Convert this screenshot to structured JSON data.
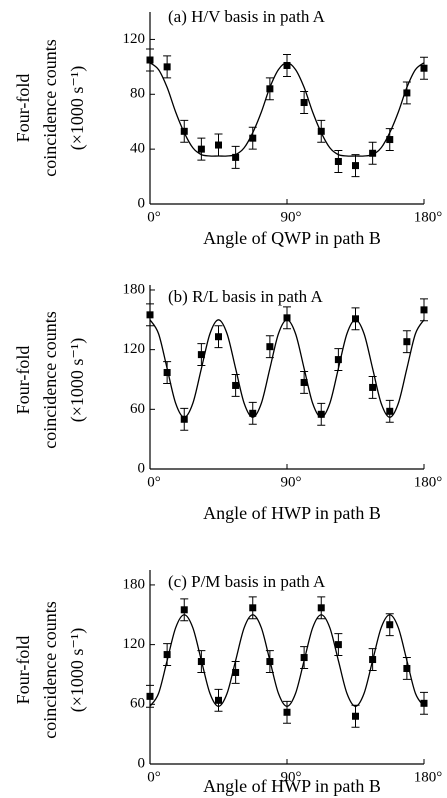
{
  "chart_data": [
    {
      "type": "scatter",
      "title": "(a) H/V basis in path A",
      "xlabel": "Angle of QWP in path B",
      "ylabel": [
        "Four-fold",
        "coincidence counts",
        "(×1000 s⁻¹)"
      ],
      "xlim": [
        0,
        180
      ],
      "xticks": [
        {
          "value": 0,
          "label": "0°"
        },
        {
          "value": 90,
          "label": "90°"
        },
        {
          "value": 180,
          "label": "180°"
        }
      ],
      "ylim": [
        0,
        140
      ],
      "yticks": [
        0,
        40,
        80,
        120
      ],
      "color": "#000000",
      "points": {
        "x": [
          0,
          11.25,
          22.5,
          33.75,
          45,
          56.25,
          67.5,
          78.75,
          90,
          101.25,
          112.5,
          123.75,
          135,
          146.25,
          157.5,
          168.75,
          180
        ],
        "values": [
          105,
          100,
          53,
          40,
          43,
          34,
          48,
          84,
          101,
          74,
          53,
          31,
          28,
          37,
          47,
          81,
          99
        ],
        "errors": [
          8,
          8,
          8,
          8,
          8,
          8,
          8,
          8,
          8,
          8,
          8,
          8,
          8,
          8,
          8,
          8,
          8
        ]
      },
      "fit": {
        "x": [
          0,
          5.625,
          11.25,
          16.875,
          22.5,
          28.125,
          33.75,
          39.375,
          45,
          50.625,
          56.25,
          61.875,
          67.5,
          73.125,
          78.75,
          84.375,
          90,
          95.625,
          101.25,
          106.875,
          112.5,
          118.125,
          123.75,
          129.375,
          135,
          140.625,
          146.25,
          151.875,
          157.5,
          163.125,
          168.75,
          174.375,
          180
        ],
        "values": [
          103,
          98,
          85,
          67,
          52,
          41,
          36,
          35,
          35,
          35,
          36,
          41,
          52,
          67,
          85,
          98,
          103,
          98,
          85,
          67,
          52,
          41,
          36,
          35,
          35,
          35,
          36,
          41,
          52,
          67,
          85,
          98,
          103
        ]
      }
    },
    {
      "type": "scatter",
      "title": "(b) R/L basis in path A",
      "xlabel": "Angle of HWP in path B",
      "ylabel": [
        "Four-fold",
        "coincidence counts",
        "(×1000 s⁻¹)"
      ],
      "xlim": [
        0,
        180
      ],
      "xticks": [
        {
          "value": 0,
          "label": "0°"
        },
        {
          "value": 90,
          "label": "90°"
        },
        {
          "value": 180,
          "label": "180°"
        }
      ],
      "ylim": [
        0,
        185
      ],
      "yticks": [
        0,
        60,
        120,
        180
      ],
      "color": "#000000",
      "points": {
        "x": [
          0,
          11.25,
          22.5,
          33.75,
          45,
          56.25,
          67.5,
          78.75,
          90,
          101.25,
          112.5,
          123.75,
          135,
          146.25,
          157.5,
          168.75,
          180
        ],
        "values": [
          155,
          97,
          50,
          115,
          133,
          84,
          56,
          123,
          152,
          87,
          55,
          110,
          151,
          82,
          58,
          128,
          160
        ],
        "errors": [
          11,
          11,
          11,
          11,
          11,
          11,
          11,
          11,
          11,
          11,
          11,
          11,
          11,
          11,
          11,
          11,
          11
        ]
      },
      "fit": {
        "x": [
          0,
          5.625,
          11.25,
          16.875,
          22.5,
          28.125,
          33.75,
          39.375,
          45,
          50.625,
          56.25,
          61.875,
          67.5,
          73.125,
          78.75,
          84.375,
          90,
          95.625,
          101.25,
          106.875,
          112.5,
          118.125,
          123.75,
          129.375,
          135,
          140.625,
          146.25,
          151.875,
          157.5,
          163.125,
          168.75,
          174.375,
          180
        ],
        "values": [
          150,
          136,
          101,
          66,
          52,
          66,
          101,
          136,
          150,
          136,
          101,
          66,
          52,
          66,
          101,
          136,
          150,
          136,
          101,
          66,
          52,
          66,
          101,
          136,
          150,
          136,
          101,
          66,
          52,
          66,
          101,
          136,
          150
        ]
      }
    },
    {
      "type": "scatter",
      "title": "(c) P/M basis in path A",
      "xlabel": "Angle of HWP in path B",
      "ylabel": [
        "Four-fold",
        "coincidence counts",
        "(×1000 s⁻¹)"
      ],
      "xlim": [
        0,
        180
      ],
      "xticks": [
        {
          "value": 0,
          "label": "0°"
        },
        {
          "value": 90,
          "label": "90°"
        },
        {
          "value": 180,
          "label": "180°"
        }
      ],
      "ylim": [
        0,
        195
      ],
      "yticks": [
        0,
        60,
        120,
        180
      ],
      "color": "#000000",
      "points": {
        "x": [
          0,
          11.25,
          22.5,
          33.75,
          45,
          56.25,
          67.5,
          78.75,
          90,
          101.25,
          112.5,
          123.75,
          135,
          146.25,
          157.5,
          168.75,
          180
        ],
        "values": [
          68,
          110,
          155,
          103,
          64,
          92,
          157,
          103,
          52,
          107,
          157,
          120,
          48,
          105,
          140,
          96,
          61
        ],
        "errors": [
          11,
          11,
          11,
          11,
          11,
          11,
          11,
          11,
          11,
          11,
          11,
          11,
          11,
          11,
          11,
          11,
          11
        ]
      },
      "fit": {
        "x": [
          0,
          5.625,
          11.25,
          16.875,
          22.5,
          28.125,
          33.75,
          39.375,
          45,
          50.625,
          56.25,
          61.875,
          67.5,
          73.125,
          78.75,
          84.375,
          90,
          95.625,
          101.25,
          106.875,
          112.5,
          118.125,
          123.75,
          129.375,
          135,
          140.625,
          146.25,
          151.875,
          157.5,
          163.125,
          168.75,
          174.375,
          180
        ],
        "values": [
          58,
          71,
          104,
          137,
          150,
          137,
          104,
          71,
          58,
          71,
          104,
          137,
          150,
          137,
          104,
          71,
          58,
          71,
          104,
          137,
          150,
          137,
          104,
          71,
          58,
          71,
          104,
          137,
          150,
          137,
          104,
          71,
          58
        ]
      }
    }
  ]
}
